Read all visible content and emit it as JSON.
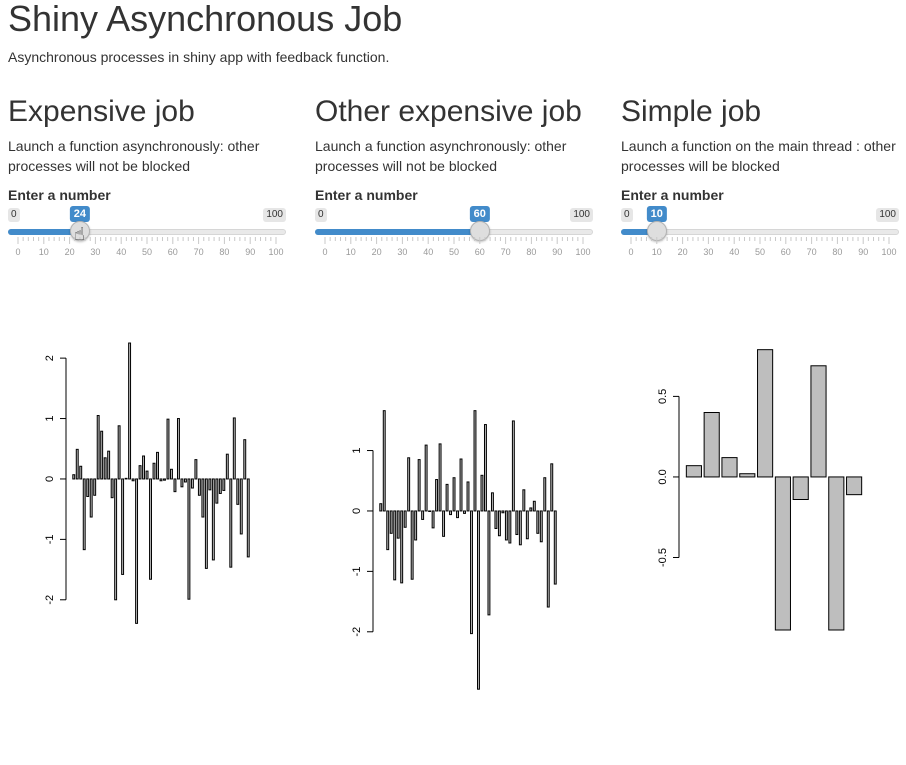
{
  "header": {
    "title": "Shiny Asynchronous Job",
    "subtitle": "Asynchronous processes in shiny app with feedback function."
  },
  "panels": [
    {
      "heading": "Expensive job",
      "description": "Launch a function asynchronously: other processes will not be blocked",
      "input_label": "Enter a number",
      "slider": {
        "min": 0,
        "max": 100,
        "value": 24,
        "min_label": "0",
        "max_label": "100",
        "value_label": "24",
        "tick_labels": [
          "0",
          "10",
          "20",
          "30",
          "40",
          "50",
          "60",
          "70",
          "80",
          "90",
          "100"
        ]
      }
    },
    {
      "heading": "Other expensive job",
      "description": "Launch a function asynchronously: other processes will not be blocked",
      "input_label": "Enter a number",
      "slider": {
        "min": 0,
        "max": 100,
        "value": 60,
        "min_label": "0",
        "max_label": "100",
        "value_label": "60",
        "tick_labels": [
          "0",
          "10",
          "20",
          "30",
          "40",
          "50",
          "60",
          "70",
          "80",
          "90",
          "100"
        ]
      }
    },
    {
      "heading": "Simple job",
      "description": "Launch a function on the main thread : other processes will be blocked",
      "input_label": "Enter a number",
      "slider": {
        "min": 0,
        "max": 100,
        "value": 10,
        "min_label": "0",
        "max_label": "100",
        "value_label": "10",
        "tick_labels": [
          "0",
          "10",
          "20",
          "30",
          "40",
          "50",
          "60",
          "70",
          "80",
          "90",
          "100"
        ]
      }
    }
  ],
  "colors": {
    "accent": "#428bca",
    "bar_fill": "#bebebe",
    "bar_stroke": "#000000"
  },
  "chart_data": [
    {
      "type": "bar",
      "ylim": [
        -2.5,
        2.3
      ],
      "yticks": [
        -2,
        -1,
        0,
        1,
        2
      ],
      "ytick_labels": [
        "-2",
        "-1",
        "0",
        "1",
        "2"
      ],
      "grid": false,
      "values": [
        0.07,
        0.49,
        0.21,
        -1.17,
        -0.29,
        -0.63,
        -0.27,
        1.05,
        0.79,
        0.35,
        0.46,
        -0.31,
        -2.0,
        0.88,
        -1.58,
        0.01,
        2.25,
        -0.03,
        -2.39,
        0.22,
        0.38,
        0.13,
        -1.66,
        0.26,
        0.44,
        -0.03,
        -0.02,
        0.99,
        0.16,
        -0.21,
        1.0,
        -0.13,
        -0.05,
        -1.99,
        -0.15,
        0.32,
        -0.27,
        -0.63,
        -1.48,
        -0.18,
        -1.34,
        -0.4,
        -0.24,
        -0.19,
        0.41,
        -1.46,
        1.01,
        -0.42,
        -0.91,
        0.65,
        -1.29
      ]
    },
    {
      "type": "bar",
      "ylim": [
        -2.5,
        2.3
      ],
      "yticks": [
        -2,
        -1,
        0,
        1
      ],
      "ytick_labels": [
        "-2",
        "-1",
        "0",
        "1"
      ],
      "grid": false,
      "values": [
        0.12,
        1.66,
        -0.64,
        -0.37,
        -1.14,
        -0.45,
        -1.19,
        -0.27,
        0.88,
        -1.13,
        -0.48,
        0.85,
        -0.14,
        1.09,
        0.0,
        -0.28,
        0.52,
        1.11,
        -0.42,
        0.44,
        -0.06,
        0.55,
        -0.11,
        0.86,
        -0.04,
        0.48,
        -2.03,
        1.66,
        -2.95,
        0.59,
        1.43,
        -1.72,
        0.3,
        -0.29,
        -0.41,
        -0.03,
        -0.48,
        -0.53,
        1.49,
        -0.39,
        -0.56,
        0.35,
        -0.46,
        0.05,
        0.16,
        -0.37,
        -0.51,
        0.55,
        -1.59,
        0.78,
        -1.21
      ]
    },
    {
      "type": "bar",
      "ylim": [
        -0.95,
        0.85
      ],
      "yticks": [
        -0.5,
        0.0,
        0.5
      ],
      "ytick_labels": [
        "-0.5",
        "0.0",
        "0.5"
      ],
      "grid": false,
      "values": [
        0.07,
        0.4,
        0.12,
        0.02,
        0.79,
        -0.95,
        -0.14,
        0.69,
        -0.95,
        -0.11
      ]
    }
  ]
}
